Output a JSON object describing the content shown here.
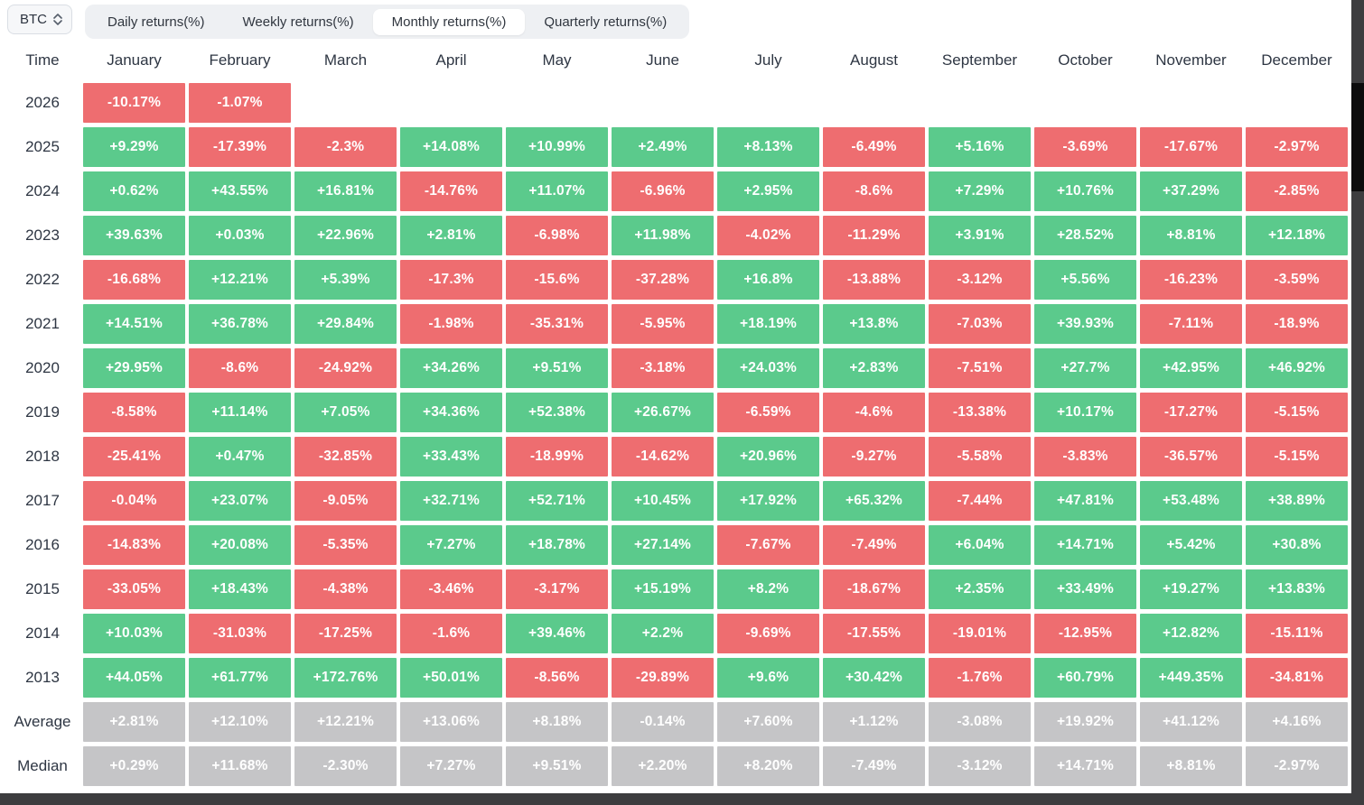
{
  "toolbar": {
    "asset_selector": {
      "value": "BTC"
    },
    "tabs": [
      {
        "label": "Daily returns(%)",
        "active": false
      },
      {
        "label": "Weekly returns(%)",
        "active": false
      },
      {
        "label": "Monthly returns(%)",
        "active": true
      },
      {
        "label": "Quarterly returns(%)",
        "active": false
      }
    ]
  },
  "colors": {
    "positive": "#5BCA8C",
    "negative": "#EE6D70",
    "neutral": "#C5C5C7",
    "header_text": "#2E3643",
    "window_edge": "#3D3D3F"
  },
  "chart_data": {
    "type": "heatmap",
    "title": "Monthly returns(%)",
    "legend_position": "none",
    "columns": [
      "Time",
      "January",
      "February",
      "March",
      "April",
      "May",
      "June",
      "July",
      "August",
      "September",
      "October",
      "November",
      "December"
    ],
    "rows": [
      {
        "label": "2026",
        "kind": "year",
        "values": [
          "-10.17%",
          "-1.07%",
          null,
          null,
          null,
          null,
          null,
          null,
          null,
          null,
          null,
          null
        ]
      },
      {
        "label": "2025",
        "kind": "year",
        "values": [
          "+9.29%",
          "-17.39%",
          "-2.3%",
          "+14.08%",
          "+10.99%",
          "+2.49%",
          "+8.13%",
          "-6.49%",
          "+5.16%",
          "-3.69%",
          "-17.67%",
          "-2.97%"
        ]
      },
      {
        "label": "2024",
        "kind": "year",
        "values": [
          "+0.62%",
          "+43.55%",
          "+16.81%",
          "-14.76%",
          "+11.07%",
          "-6.96%",
          "+2.95%",
          "-8.6%",
          "+7.29%",
          "+10.76%",
          "+37.29%",
          "-2.85%"
        ]
      },
      {
        "label": "2023",
        "kind": "year",
        "values": [
          "+39.63%",
          "+0.03%",
          "+22.96%",
          "+2.81%",
          "-6.98%",
          "+11.98%",
          "-4.02%",
          "-11.29%",
          "+3.91%",
          "+28.52%",
          "+8.81%",
          "+12.18%"
        ]
      },
      {
        "label": "2022",
        "kind": "year",
        "values": [
          "-16.68%",
          "+12.21%",
          "+5.39%",
          "-17.3%",
          "-15.6%",
          "-37.28%",
          "+16.8%",
          "-13.88%",
          "-3.12%",
          "+5.56%",
          "-16.23%",
          "-3.59%"
        ]
      },
      {
        "label": "2021",
        "kind": "year",
        "values": [
          "+14.51%",
          "+36.78%",
          "+29.84%",
          "-1.98%",
          "-35.31%",
          "-5.95%",
          "+18.19%",
          "+13.8%",
          "-7.03%",
          "+39.93%",
          "-7.11%",
          "-18.9%"
        ]
      },
      {
        "label": "2020",
        "kind": "year",
        "values": [
          "+29.95%",
          "-8.6%",
          "-24.92%",
          "+34.26%",
          "+9.51%",
          "-3.18%",
          "+24.03%",
          "+2.83%",
          "-7.51%",
          "+27.7%",
          "+42.95%",
          "+46.92%"
        ]
      },
      {
        "label": "2019",
        "kind": "year",
        "values": [
          "-8.58%",
          "+11.14%",
          "+7.05%",
          "+34.36%",
          "+52.38%",
          "+26.67%",
          "-6.59%",
          "-4.6%",
          "-13.38%",
          "+10.17%",
          "-17.27%",
          "-5.15%"
        ]
      },
      {
        "label": "2018",
        "kind": "year",
        "values": [
          "-25.41%",
          "+0.47%",
          "-32.85%",
          "+33.43%",
          "-18.99%",
          "-14.62%",
          "+20.96%",
          "-9.27%",
          "-5.58%",
          "-3.83%",
          "-36.57%",
          "-5.15%"
        ]
      },
      {
        "label": "2017",
        "kind": "year",
        "values": [
          "-0.04%",
          "+23.07%",
          "-9.05%",
          "+32.71%",
          "+52.71%",
          "+10.45%",
          "+17.92%",
          "+65.32%",
          "-7.44%",
          "+47.81%",
          "+53.48%",
          "+38.89%"
        ]
      },
      {
        "label": "2016",
        "kind": "year",
        "values": [
          "-14.83%",
          "+20.08%",
          "-5.35%",
          "+7.27%",
          "+18.78%",
          "+27.14%",
          "-7.67%",
          "-7.49%",
          "+6.04%",
          "+14.71%",
          "+5.42%",
          "+30.8%"
        ]
      },
      {
        "label": "2015",
        "kind": "year",
        "values": [
          "-33.05%",
          "+18.43%",
          "-4.38%",
          "-3.46%",
          "-3.17%",
          "+15.19%",
          "+8.2%",
          "-18.67%",
          "+2.35%",
          "+33.49%",
          "+19.27%",
          "+13.83%"
        ]
      },
      {
        "label": "2014",
        "kind": "year",
        "values": [
          "+10.03%",
          "-31.03%",
          "-17.25%",
          "-1.6%",
          "+39.46%",
          "+2.2%",
          "-9.69%",
          "-17.55%",
          "-19.01%",
          "-12.95%",
          "+12.82%",
          "-15.11%"
        ]
      },
      {
        "label": "2013",
        "kind": "year",
        "values": [
          "+44.05%",
          "+61.77%",
          "+172.76%",
          "+50.01%",
          "-8.56%",
          "-29.89%",
          "+9.6%",
          "+30.42%",
          "-1.76%",
          "+60.79%",
          "+449.35%",
          "-34.81%"
        ]
      },
      {
        "label": "Average",
        "kind": "summary",
        "values": [
          "+2.81%",
          "+12.10%",
          "+12.21%",
          "+13.06%",
          "+8.18%",
          "-0.14%",
          "+7.60%",
          "+1.12%",
          "-3.08%",
          "+19.92%",
          "+41.12%",
          "+4.16%"
        ]
      },
      {
        "label": "Median",
        "kind": "summary",
        "values": [
          "+0.29%",
          "+11.68%",
          "-2.30%",
          "+7.27%",
          "+9.51%",
          "+2.20%",
          "+8.20%",
          "-7.49%",
          "-3.12%",
          "+14.71%",
          "+8.81%",
          "-2.97%"
        ]
      }
    ]
  }
}
